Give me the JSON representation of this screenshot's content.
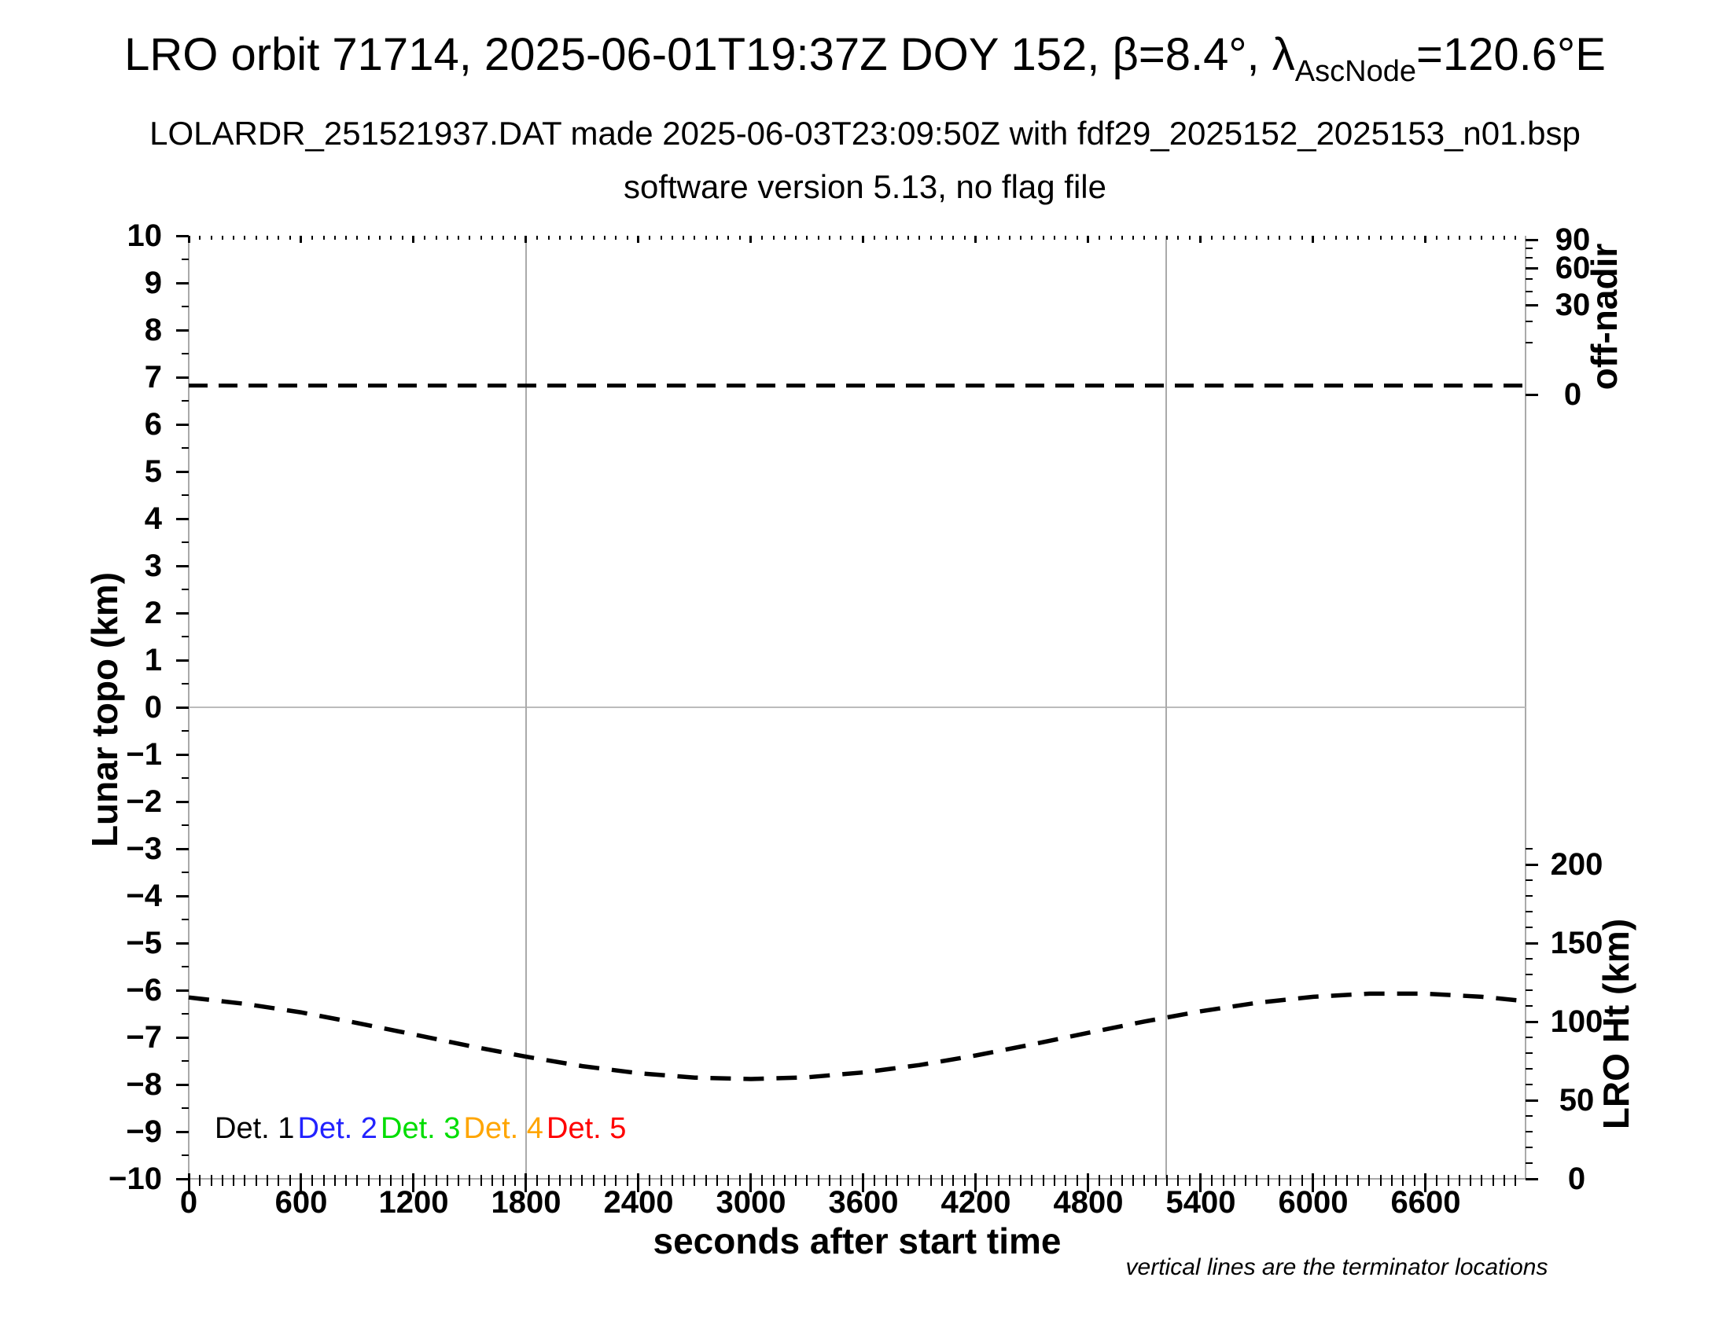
{
  "title": {
    "main": "LRO orbit 71714, 2025-06-01T19:37Z DOY 152, β=8.4°, λ",
    "sub": "AscNode",
    "post": "=120.6°E"
  },
  "subtitle1": "LOLARDR_251521937.DAT made 2025-06-03T23:09:50Z with fdf29_2025152_2025153_n01.bsp",
  "subtitle2": "software version 5.13, no flag file",
  "footnote": "vertical lines are the terminator locations",
  "legend": {
    "items": [
      {
        "label": "Det. 1",
        "color": "#000000"
      },
      {
        "label": "Det. 2",
        "color": "#2222ff"
      },
      {
        "label": "Det. 3",
        "color": "#00dd00"
      },
      {
        "label": "Det. 4",
        "color": "#ffa500"
      },
      {
        "label": "Det. 5",
        "color": "#ff0000"
      }
    ]
  },
  "chart_data": {
    "type": "line",
    "xlabel": "seconds after start time",
    "x_range": [
      0,
      7130
    ],
    "x_major_ticks": [
      0,
      600,
      1200,
      1800,
      2400,
      3000,
      3600,
      4200,
      4800,
      5400,
      6000,
      6600
    ],
    "x_minor_step": 60,
    "y_left": {
      "label": "Lunar topo (km)",
      "range": [
        -10,
        10
      ],
      "major_step": 1,
      "minor_step": 0.5
    },
    "y_right_offnadir": {
      "label": "off-nadir",
      "ticks": [
        0,
        30,
        60,
        90
      ],
      "minor_step": 10,
      "scale": "sqrt",
      "unit": "deg"
    },
    "y_right_lro_ht": {
      "label": "LRO Ht (km)",
      "ticks": [
        0,
        50,
        100,
        150,
        200
      ],
      "minor_step": 10,
      "minor_max": 210
    },
    "terminator_lines_s": [
      1800,
      5215
    ],
    "grid": "terminator-verticals-and-zero-line",
    "series": [
      {
        "name": "off-nadir angle",
        "axis": "offnadir",
        "style": "dashed",
        "color": "#000000",
        "constant_value_deg": 0.3
      },
      {
        "name": "LRO height",
        "axis": "lro_ht",
        "style": "dashed",
        "color": "#000000",
        "points_s_km": [
          [
            0,
            115.4
          ],
          [
            300,
            111.3
          ],
          [
            600,
            105.9
          ],
          [
            900,
            99.1
          ],
          [
            1200,
            91.9
          ],
          [
            1500,
            84.5
          ],
          [
            1800,
            77.7
          ],
          [
            2100,
            71.7
          ],
          [
            2400,
            67.2
          ],
          [
            2700,
            64.4
          ],
          [
            3000,
            63.5
          ],
          [
            3300,
            64.6
          ],
          [
            3600,
            67.7
          ],
          [
            3900,
            72.4
          ],
          [
            4200,
            78.5
          ],
          [
            4500,
            85.5
          ],
          [
            4800,
            92.9
          ],
          [
            5100,
            100.1
          ],
          [
            5400,
            106.6
          ],
          [
            5700,
            112.0
          ],
          [
            6000,
            115.8
          ],
          [
            6300,
            117.8
          ],
          [
            6600,
            117.8
          ],
          [
            6900,
            115.8
          ],
          [
            7130,
            113.1
          ]
        ]
      }
    ]
  }
}
